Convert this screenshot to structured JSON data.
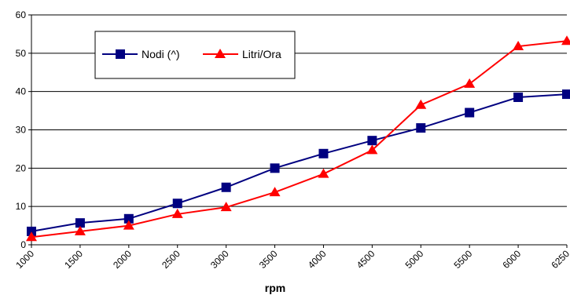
{
  "chart_data": {
    "type": "line",
    "title": "",
    "xlabel": "rpm",
    "ylabel": "",
    "categories": [
      "1000",
      "1500",
      "2000",
      "2500",
      "3000",
      "3500",
      "4000",
      "4500",
      "5000",
      "5500",
      "6000",
      "6250"
    ],
    "ylim": [
      0,
      60
    ],
    "yticks": [
      "0",
      "10",
      "20",
      "30",
      "40",
      "50",
      "60"
    ],
    "grid": "horizontal",
    "legend_position": "top-left",
    "series": [
      {
        "name": "Nodi (^)",
        "color": "#000080",
        "marker": "square",
        "values": [
          3.5,
          5.7,
          6.8,
          10.8,
          15,
          20,
          23.8,
          27.2,
          30.5,
          34.5,
          38.5,
          39.3
        ]
      },
      {
        "name": "Litri/Ora",
        "color": "#ff0000",
        "marker": "triangle",
        "values": [
          2,
          3.5,
          5,
          8,
          9.8,
          13.7,
          18.5,
          24.7,
          36.5,
          42,
          51.8,
          53.2
        ]
      }
    ]
  }
}
